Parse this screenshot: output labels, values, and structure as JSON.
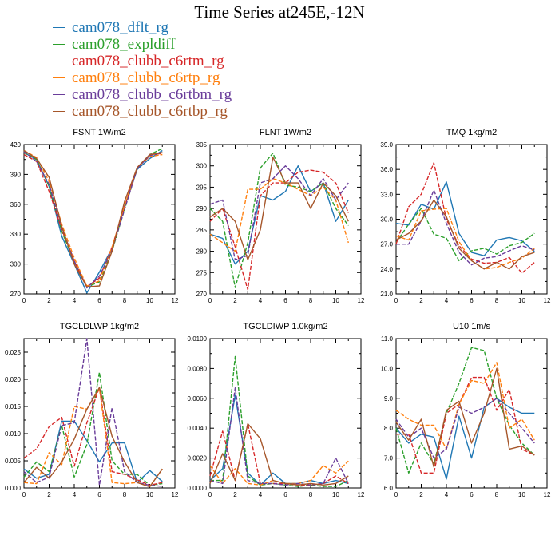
{
  "figure": {
    "title": "Time Series at245E,-12N",
    "legend": [
      {
        "name": "cam078_dflt_rg",
        "color": "#1f77b4",
        "dash": "solid"
      },
      {
        "name": "cam078_expldiff",
        "color": "#2ca02c",
        "dash": "dashed"
      },
      {
        "name": "cam078_clubb_c6rtm_rg",
        "color": "#d62728",
        "dash": "dashed"
      },
      {
        "name": "cam078_clubb_c6rtp_rg",
        "color": "#ff7f0e",
        "dash": "dashed"
      },
      {
        "name": "cam078_clubb_c6rtbm_rg",
        "color": "#6a3d9a",
        "dash": "dashed"
      },
      {
        "name": "cam078_clubb_c6rtbp_rg",
        "color": "#a6562a",
        "dash": "solid"
      }
    ]
  },
  "chart_data": [
    {
      "type": "line",
      "title": "FSNT",
      "unit": "1W/m2",
      "x": [
        0,
        1,
        2,
        3,
        4,
        5,
        6,
        7,
        8,
        9,
        10,
        11
      ],
      "xlim": [
        0,
        12
      ],
      "xticks": [
        "0",
        "2",
        "4",
        "6",
        "8",
        "10",
        "12"
      ],
      "ylim": [
        270,
        420
      ],
      "yticks": [
        "270",
        "300",
        "330",
        "360",
        "390",
        "420"
      ],
      "series": [
        {
          "name": "cam078_dflt_rg",
          "values": [
            412,
            405,
            378,
            328,
            300,
            271,
            292,
            316,
            358,
            395,
            406,
            414
          ]
        },
        {
          "name": "cam078_expldiff",
          "values": [
            412,
            405,
            378,
            333,
            302,
            277,
            282,
            313,
            355,
            396,
            410,
            416
          ]
        },
        {
          "name": "cam078_clubb_c6rtm_rg",
          "values": [
            410,
            403,
            373,
            335,
            303,
            277,
            286,
            317,
            358,
            396,
            410,
            411
          ]
        },
        {
          "name": "cam078_clubb_c6rtp_rg",
          "values": [
            414,
            407,
            383,
            340,
            306,
            278,
            283,
            317,
            358,
            397,
            408,
            410
          ]
        },
        {
          "name": "cam078_clubb_c6rtbm_rg",
          "values": [
            413,
            403,
            380,
            337,
            303,
            276,
            288,
            314,
            355,
            396,
            409,
            412
          ]
        },
        {
          "name": "cam078_clubb_c6rtbp_rg",
          "values": [
            414,
            406,
            387,
            338,
            300,
            277,
            278,
            313,
            363,
            397,
            410,
            412
          ]
        }
      ]
    },
    {
      "type": "line",
      "title": "FLNT",
      "unit": "1W/m2",
      "x": [
        0,
        1,
        2,
        3,
        4,
        5,
        6,
        7,
        8,
        9,
        10,
        11
      ],
      "xlim": [
        0,
        12
      ],
      "xticks": [
        "0",
        "2",
        "4",
        "6",
        "8",
        "10",
        "12"
      ],
      "ylim": [
        270,
        305
      ],
      "yticks": [
        "270",
        "275",
        "280",
        "285",
        "290",
        "295",
        "300",
        "305"
      ],
      "series": [
        {
          "name": "cam078_dflt_rg",
          "values": [
            284,
            283,
            277,
            280,
            293,
            292,
            294,
            300,
            294,
            296,
            287,
            292
          ]
        },
        {
          "name": "cam078_expldiff",
          "values": [
            290,
            287,
            271.5,
            282,
            299.5,
            303,
            295.5,
            295,
            294,
            296,
            290,
            286
          ]
        },
        {
          "name": "cam078_clubb_c6rtm_rg",
          "values": [
            287,
            290,
            281,
            271,
            293,
            296,
            296,
            298.5,
            299,
            298.5,
            296,
            289
          ]
        },
        {
          "name": "cam078_clubb_c6rtp_rg",
          "values": [
            284,
            282,
            280,
            294.5,
            294.5,
            297,
            296,
            294.5,
            293,
            295,
            292,
            282
          ]
        },
        {
          "name": "cam078_clubb_c6rtbm_rg",
          "values": [
            291,
            292,
            278,
            279,
            296,
            297,
            300,
            297,
            293,
            297,
            292,
            296
          ]
        },
        {
          "name": "cam078_clubb_c6rtbp_rg",
          "values": [
            288,
            290,
            287,
            278,
            285,
            302,
            296,
            296,
            290,
            296,
            293,
            287
          ]
        }
      ]
    },
    {
      "type": "line",
      "title": "TMQ",
      "unit": "1kg/m2",
      "x": [
        0,
        1,
        2,
        3,
        4,
        5,
        6,
        7,
        8,
        9,
        10,
        11
      ],
      "xlim": [
        0,
        12
      ],
      "xticks": [
        "0",
        "2",
        "4",
        "6",
        "8",
        "10",
        "12"
      ],
      "ylim": [
        21,
        39
      ],
      "yticks": [
        "21.0",
        "24.0",
        "27.0",
        "30.0",
        "33.0",
        "36.0",
        "39.0"
      ],
      "series": [
        {
          "name": "cam078_dflt_rg",
          "values": [
            29.5,
            29.3,
            31.8,
            31.2,
            34.5,
            28.3,
            26.0,
            25.6,
            27.5,
            27.8,
            27.4,
            26.1
          ]
        },
        {
          "name": "cam078_expldiff",
          "values": [
            27.2,
            29.4,
            31.3,
            28.2,
            27.7,
            25.0,
            26.2,
            26.5,
            25.8,
            26.8,
            27.2,
            28.3
          ]
        },
        {
          "name": "cam078_clubb_c6rtm_rg",
          "values": [
            27.0,
            31.5,
            33.0,
            36.8,
            30.0,
            26.8,
            25.2,
            24.7,
            24.8,
            25.4,
            23.5,
            24.8
          ]
        },
        {
          "name": "cam078_clubb_c6rtp_rg",
          "values": [
            28.0,
            27.5,
            31.0,
            31.2,
            31.3,
            27.3,
            25.0,
            24.0,
            24.2,
            24.8,
            25.3,
            26.5
          ]
        },
        {
          "name": "cam078_clubb_c6rtbm_rg",
          "values": [
            27.0,
            27.0,
            29.8,
            33.5,
            29.5,
            26.0,
            24.5,
            25.3,
            25.5,
            26.2,
            26.8,
            26.3
          ]
        },
        {
          "name": "cam078_clubb_c6rtbp_rg",
          "values": [
            27.5,
            28.3,
            29.8,
            32.3,
            30.3,
            26.5,
            25.0,
            24.0,
            24.8,
            24.0,
            25.5,
            26.0
          ]
        }
      ]
    },
    {
      "type": "line",
      "title": "TGCLDLWP",
      "unit": "1kg/m2",
      "x": [
        0,
        1,
        2,
        3,
        4,
        5,
        6,
        7,
        8,
        9,
        10,
        11
      ],
      "xlim": [
        0,
        12
      ],
      "xticks": [
        "0",
        "2",
        "4",
        "6",
        "8",
        "10",
        "12"
      ],
      "ylim": [
        0,
        0.0275
      ],
      "yticks": [
        "0.000",
        "0.005",
        "0.010",
        "0.015",
        "0.020",
        "0.025"
      ],
      "series": [
        {
          "name": "cam078_dflt_rg",
          "values": [
            0.0035,
            0.0018,
            0.0025,
            0.0123,
            0.0123,
            0.0087,
            0.0048,
            0.0083,
            0.0083,
            0.001,
            0.0032,
            0.0012
          ]
        },
        {
          "name": "cam078_expldiff",
          "values": [
            0.002,
            0.0048,
            0.003,
            0.0115,
            0.002,
            0.008,
            0.0213,
            0.005,
            0.0025,
            0.0025,
            0.0005,
            0.0008
          ]
        },
        {
          "name": "cam078_clubb_c6rtm_rg",
          "values": [
            0.0055,
            0.0072,
            0.0113,
            0.013,
            0.004,
            0.012,
            0.0185,
            0.003,
            0.0025,
            0.0015,
            0.0005,
            0.001
          ]
        },
        {
          "name": "cam078_clubb_c6rtp_rg",
          "values": [
            0.001,
            0.0008,
            0.0065,
            0.0043,
            0.015,
            0.0145,
            0.0183,
            0.001,
            0.0008,
            0.001,
            0.0003,
            0.0035
          ]
        },
        {
          "name": "cam078_clubb_c6rtbm_rg",
          "values": [
            0.003,
            0.001,
            0.002,
            0.0115,
            0.012,
            0.0275,
            0.0005,
            0.0148,
            0.003,
            0.001,
            0.0005,
            0.0003
          ]
        },
        {
          "name": "cam078_clubb_c6rtbp_rg",
          "values": [
            0.001,
            0.0038,
            0.0018,
            0.0048,
            0.009,
            0.0145,
            0.0185,
            0.0095,
            0.0048,
            0.001,
            0.0002,
            0.0035
          ]
        }
      ]
    },
    {
      "type": "line",
      "title": "TGCLDIWP",
      "unit": "1.0kg/m2",
      "x": [
        0,
        1,
        2,
        3,
        4,
        5,
        6,
        7,
        8,
        9,
        10,
        11
      ],
      "xlim": [
        0,
        12
      ],
      "xticks": [
        "0",
        "2",
        "4",
        "6",
        "8",
        "10",
        "12"
      ],
      "ylim": [
        0,
        0.01
      ],
      "yticks": [
        "0.0000",
        "0.0020",
        "0.0040",
        "0.0060",
        "0.0080",
        "0.0100"
      ],
      "series": [
        {
          "name": "cam078_dflt_rg",
          "values": [
            0.0005,
            0.0013,
            0.0062,
            0.001,
            0.0002,
            0.001,
            0.0003,
            0.0003,
            0.0005,
            0.0003,
            0.0005,
            0.0003
          ]
        },
        {
          "name": "cam078_expldiff",
          "values": [
            0.0005,
            0.0005,
            0.0088,
            0.0008,
            0.0002,
            0.0003,
            0.0002,
            0.0001,
            0.0002,
            0.0001,
            0.0001,
            0.0005
          ]
        },
        {
          "name": "cam078_clubb_c6rtm_rg",
          "values": [
            0.0008,
            0.0038,
            0.0005,
            0.0043,
            0.0003,
            0.0003,
            0.0003,
            0.0002,
            0.0002,
            0.0003,
            0.0008,
            0.0003
          ]
        },
        {
          "name": "cam078_clubb_c6rtp_rg",
          "values": [
            0.0015,
            0.0003,
            0.0013,
            0.0003,
            0.0002,
            0.0005,
            0.0003,
            0.0003,
            0.0005,
            0.0015,
            0.001,
            0.0018
          ]
        },
        {
          "name": "cam078_clubb_c6rtbm_rg",
          "values": [
            0.0005,
            0.0003,
            0.0067,
            0.0005,
            0.0003,
            0.0003,
            0.0002,
            0.0003,
            0.0002,
            0.0003,
            0.002,
            0.0003
          ]
        },
        {
          "name": "cam078_clubb_c6rtbp_rg",
          "values": [
            0.0003,
            0.0023,
            0.0005,
            0.0043,
            0.0033,
            0.0005,
            0.0003,
            0.0002,
            0.0003,
            0.0002,
            0.0003,
            0.0008
          ]
        }
      ]
    },
    {
      "type": "line",
      "title": "U10",
      "unit": "1m/s",
      "x": [
        0,
        1,
        2,
        3,
        4,
        5,
        6,
        7,
        8,
        9,
        10,
        11
      ],
      "xlim": [
        0,
        12
      ],
      "xticks": [
        "0",
        "2",
        "4",
        "6",
        "8",
        "10",
        "12"
      ],
      "ylim": [
        6,
        11
      ],
      "yticks": [
        "6.0",
        "7.0",
        "8.0",
        "9.0",
        "10.0",
        "11.0"
      ],
      "series": [
        {
          "name": "cam078_dflt_rg",
          "values": [
            8.0,
            7.5,
            7.8,
            7.7,
            6.3,
            8.4,
            7.0,
            8.7,
            9.0,
            8.7,
            8.5,
            8.5
          ]
        },
        {
          "name": "cam078_expldiff",
          "values": [
            8.0,
            6.5,
            7.5,
            6.8,
            8.5,
            9.5,
            10.7,
            10.6,
            9.0,
            8.1,
            7.5,
            7.1
          ]
        },
        {
          "name": "cam078_clubb_c6rtm_rg",
          "values": [
            7.8,
            7.8,
            6.5,
            6.5,
            8.5,
            8.8,
            9.7,
            9.7,
            8.6,
            9.3,
            7.3,
            7.1
          ]
        },
        {
          "name": "cam078_clubb_c6rtp_rg",
          "values": [
            8.6,
            8.3,
            8.1,
            8.1,
            7.3,
            8.8,
            9.6,
            9.5,
            10.2,
            8.0,
            8.3,
            7.6
          ]
        },
        {
          "name": "cam078_clubb_c6rtbm_rg",
          "values": [
            8.3,
            7.7,
            8.0,
            7.0,
            7.3,
            8.7,
            8.5,
            8.7,
            9.0,
            8.5,
            8.0,
            7.5
          ]
        },
        {
          "name": "cam078_clubb_c6rtbp_rg",
          "values": [
            8.2,
            7.6,
            8.3,
            6.7,
            8.6,
            8.9,
            7.5,
            8.5,
            10.0,
            7.3,
            7.4,
            7.1
          ]
        }
      ]
    }
  ]
}
